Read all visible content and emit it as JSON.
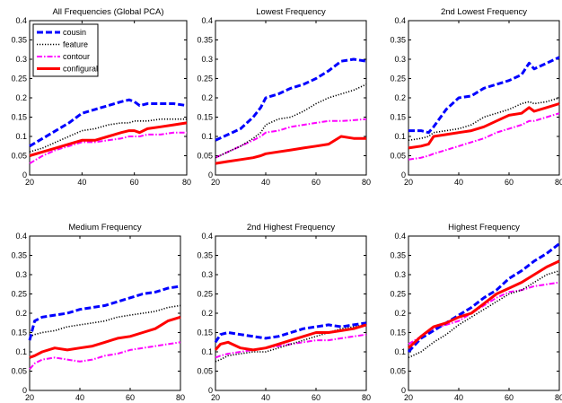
{
  "style": {
    "cousin": {
      "color": "#0000ff",
      "dash": "7,3",
      "width": 3
    },
    "feature": {
      "color": "#000000",
      "dash": "1.2,1.8",
      "width": 1.6
    },
    "contour": {
      "color": "#ff00ff",
      "dash": "6,2,1.5,2",
      "width": 2
    },
    "configural": {
      "color": "#ff0000",
      "dash": "",
      "width": 3
    }
  },
  "chart_data": [
    {
      "type": "line",
      "title": "All Frequencies (Global PCA)",
      "xlabel": "",
      "ylabel": "",
      "xlim": [
        20,
        80
      ],
      "ylim": [
        0,
        0.4
      ],
      "xticks": [
        "20",
        "40",
        "60",
        "80"
      ],
      "yticks": [
        "0",
        "0.05",
        "0.1",
        "0.15",
        "0.2",
        "0.25",
        "0.3",
        "0.35",
        "0.4"
      ],
      "legend": {
        "position": "top-left",
        "entries": [
          "cousin",
          "feature",
          "contour",
          "configural"
        ]
      },
      "x": [
        20,
        25,
        30,
        35,
        40,
        45,
        50,
        55,
        58,
        60,
        62,
        65,
        70,
        75,
        80
      ],
      "series": [
        {
          "name": "cousin",
          "values": [
            0.075,
            0.095,
            0.115,
            0.135,
            0.16,
            0.17,
            0.18,
            0.19,
            0.195,
            0.19,
            0.18,
            0.185,
            0.185,
            0.185,
            0.18
          ]
        },
        {
          "name": "feature",
          "values": [
            0.06,
            0.07,
            0.085,
            0.1,
            0.115,
            0.12,
            0.13,
            0.135,
            0.135,
            0.14,
            0.14,
            0.14,
            0.145,
            0.145,
            0.145
          ]
        },
        {
          "name": "contour",
          "values": [
            0.03,
            0.05,
            0.065,
            0.075,
            0.085,
            0.085,
            0.09,
            0.095,
            0.1,
            0.1,
            0.1,
            0.105,
            0.105,
            0.11,
            0.11
          ]
        },
        {
          "name": "configural",
          "values": [
            0.05,
            0.06,
            0.07,
            0.08,
            0.09,
            0.09,
            0.1,
            0.11,
            0.115,
            0.115,
            0.11,
            0.12,
            0.125,
            0.13,
            0.135
          ]
        }
      ]
    },
    {
      "type": "line",
      "title": "Lowest Frequency",
      "xlabel": "",
      "ylabel": "",
      "xlim": [
        20,
        80
      ],
      "ylim": [
        0,
        0.4
      ],
      "xticks": [
        "20",
        "40",
        "60",
        "80"
      ],
      "yticks": [
        "0",
        "0.05",
        "0.1",
        "0.15",
        "0.2",
        "0.25",
        "0.3",
        "0.35",
        "0.4"
      ],
      "x": [
        20,
        25,
        30,
        35,
        38,
        40,
        45,
        50,
        55,
        60,
        65,
        70,
        75,
        80
      ],
      "series": [
        {
          "name": "cousin",
          "values": [
            0.09,
            0.105,
            0.12,
            0.15,
            0.175,
            0.2,
            0.21,
            0.225,
            0.235,
            0.25,
            0.27,
            0.295,
            0.3,
            0.295
          ]
        },
        {
          "name": "feature",
          "values": [
            0.045,
            0.06,
            0.075,
            0.095,
            0.11,
            0.13,
            0.145,
            0.15,
            0.165,
            0.185,
            0.2,
            0.21,
            0.22,
            0.235
          ]
        },
        {
          "name": "contour",
          "values": [
            0.045,
            0.06,
            0.075,
            0.09,
            0.1,
            0.11,
            0.115,
            0.125,
            0.13,
            0.135,
            0.14,
            0.14,
            0.142,
            0.145
          ]
        },
        {
          "name": "configural",
          "values": [
            0.03,
            0.035,
            0.04,
            0.045,
            0.05,
            0.055,
            0.06,
            0.065,
            0.07,
            0.075,
            0.08,
            0.1,
            0.095,
            0.095
          ]
        }
      ]
    },
    {
      "type": "line",
      "title": "2nd Lowest Frequency",
      "xlabel": "",
      "ylabel": "",
      "xlim": [
        20,
        80
      ],
      "ylim": [
        0,
        0.4
      ],
      "xticks": [
        "20",
        "40",
        "60",
        "80"
      ],
      "yticks": [
        "0",
        "0.05",
        "0.1",
        "0.15",
        "0.2",
        "0.25",
        "0.3",
        "0.35",
        "0.4"
      ],
      "x": [
        20,
        25,
        28,
        30,
        35,
        40,
        45,
        50,
        55,
        60,
        65,
        68,
        70,
        75,
        80
      ],
      "series": [
        {
          "name": "cousin",
          "values": [
            0.115,
            0.115,
            0.11,
            0.125,
            0.17,
            0.2,
            0.205,
            0.225,
            0.235,
            0.245,
            0.26,
            0.29,
            0.275,
            0.29,
            0.305
          ]
        },
        {
          "name": "feature",
          "values": [
            0.09,
            0.095,
            0.1,
            0.11,
            0.115,
            0.12,
            0.13,
            0.15,
            0.16,
            0.17,
            0.185,
            0.19,
            0.185,
            0.19,
            0.2
          ]
        },
        {
          "name": "contour",
          "values": [
            0.04,
            0.045,
            0.05,
            0.055,
            0.065,
            0.075,
            0.085,
            0.095,
            0.11,
            0.12,
            0.13,
            0.14,
            0.14,
            0.15,
            0.16
          ]
        },
        {
          "name": "configural",
          "values": [
            0.07,
            0.075,
            0.08,
            0.1,
            0.105,
            0.11,
            0.115,
            0.125,
            0.14,
            0.155,
            0.16,
            0.175,
            0.165,
            0.175,
            0.185
          ]
        }
      ]
    },
    {
      "type": "line",
      "title": "Medium Frequency",
      "xlabel": "",
      "ylabel": "",
      "xlim": [
        20,
        80
      ],
      "ylim": [
        0,
        0.4
      ],
      "xticks": [
        "20",
        "40",
        "60",
        "80"
      ],
      "yticks": [
        "0",
        "0.05",
        "0.1",
        "0.15",
        "0.2",
        "0.25",
        "0.3",
        "0.35",
        "0.4"
      ],
      "x": [
        20,
        22,
        25,
        30,
        35,
        40,
        45,
        50,
        55,
        60,
        65,
        70,
        75,
        80
      ],
      "series": [
        {
          "name": "cousin",
          "values": [
            0.13,
            0.18,
            0.19,
            0.195,
            0.2,
            0.21,
            0.215,
            0.22,
            0.23,
            0.24,
            0.25,
            0.255,
            0.265,
            0.27
          ]
        },
        {
          "name": "feature",
          "values": [
            0.14,
            0.145,
            0.15,
            0.155,
            0.165,
            0.17,
            0.175,
            0.18,
            0.19,
            0.195,
            0.2,
            0.205,
            0.215,
            0.22
          ]
        },
        {
          "name": "contour",
          "values": [
            0.055,
            0.07,
            0.08,
            0.085,
            0.08,
            0.075,
            0.08,
            0.09,
            0.095,
            0.105,
            0.11,
            0.115,
            0.12,
            0.125
          ]
        },
        {
          "name": "configural",
          "values": [
            0.085,
            0.09,
            0.1,
            0.11,
            0.105,
            0.11,
            0.115,
            0.125,
            0.135,
            0.14,
            0.15,
            0.16,
            0.18,
            0.19
          ]
        }
      ]
    },
    {
      "type": "line",
      "title": "2nd Highest Frequency",
      "xlabel": "",
      "ylabel": "",
      "xlim": [
        20,
        80
      ],
      "ylim": [
        0,
        0.4
      ],
      "xticks": [
        "20",
        "40",
        "60",
        "80"
      ],
      "yticks": [
        "0",
        "0.05",
        "0.1",
        "0.15",
        "0.2",
        "0.25",
        "0.3",
        "0.35",
        "0.4"
      ],
      "x": [
        20,
        22,
        25,
        30,
        35,
        40,
        45,
        50,
        55,
        60,
        65,
        70,
        75,
        80
      ],
      "series": [
        {
          "name": "cousin",
          "values": [
            0.125,
            0.145,
            0.15,
            0.145,
            0.14,
            0.135,
            0.14,
            0.15,
            0.16,
            0.165,
            0.17,
            0.165,
            0.17,
            0.175
          ]
        },
        {
          "name": "feature",
          "values": [
            0.075,
            0.08,
            0.09,
            0.095,
            0.1,
            0.1,
            0.11,
            0.12,
            0.13,
            0.14,
            0.15,
            0.16,
            0.165,
            0.17
          ]
        },
        {
          "name": "contour",
          "values": [
            0.085,
            0.09,
            0.095,
            0.1,
            0.105,
            0.11,
            0.115,
            0.12,
            0.125,
            0.13,
            0.13,
            0.135,
            0.14,
            0.145
          ]
        },
        {
          "name": "configural",
          "values": [
            0.105,
            0.12,
            0.125,
            0.11,
            0.105,
            0.11,
            0.12,
            0.13,
            0.14,
            0.15,
            0.15,
            0.155,
            0.16,
            0.17
          ]
        }
      ]
    },
    {
      "type": "line",
      "title": "Highest Frequency",
      "xlabel": "",
      "ylabel": "",
      "xlim": [
        20,
        80
      ],
      "ylim": [
        0,
        0.4
      ],
      "xticks": [
        "20",
        "40",
        "60",
        "80"
      ],
      "yticks": [
        "0",
        "0.05",
        "0.1",
        "0.15",
        "0.2",
        "0.25",
        "0.3",
        "0.35",
        "0.4"
      ],
      "x": [
        20,
        25,
        30,
        35,
        40,
        45,
        50,
        55,
        60,
        65,
        70,
        75,
        80
      ],
      "series": [
        {
          "name": "cousin",
          "values": [
            0.1,
            0.135,
            0.155,
            0.175,
            0.195,
            0.215,
            0.24,
            0.26,
            0.29,
            0.31,
            0.335,
            0.355,
            0.38
          ]
        },
        {
          "name": "feature",
          "values": [
            0.085,
            0.1,
            0.125,
            0.145,
            0.17,
            0.19,
            0.21,
            0.23,
            0.25,
            0.26,
            0.28,
            0.3,
            0.31
          ]
        },
        {
          "name": "contour",
          "values": [
            0.12,
            0.14,
            0.16,
            0.17,
            0.18,
            0.2,
            0.22,
            0.24,
            0.255,
            0.26,
            0.27,
            0.275,
            0.28
          ]
        },
        {
          "name": "configural",
          "values": [
            0.11,
            0.14,
            0.165,
            0.175,
            0.19,
            0.2,
            0.225,
            0.25,
            0.265,
            0.28,
            0.3,
            0.32,
            0.335
          ]
        }
      ]
    }
  ]
}
